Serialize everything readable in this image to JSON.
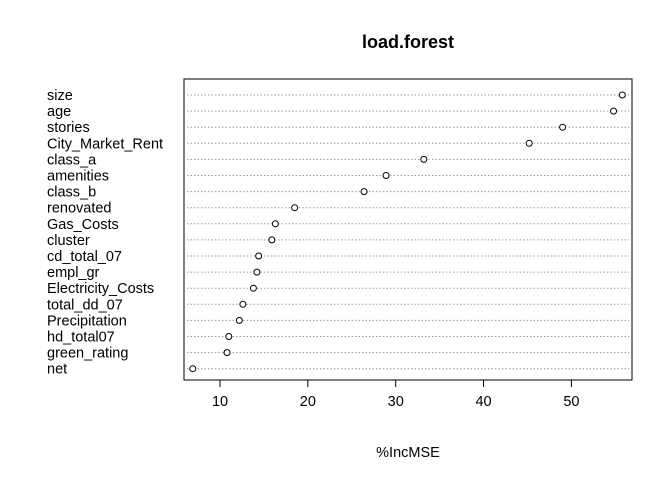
{
  "chart_data": {
    "type": "scatter",
    "title": "load.forest",
    "xlabel": "%IncMSE",
    "ylabel": "",
    "xlim": [
      5.9,
      56.9
    ],
    "xticks": [
      10,
      20,
      30,
      40,
      50
    ],
    "grid": "dotted horizontal lines per variable",
    "categories": [
      "size",
      "age",
      "stories",
      "City_Market_Rent",
      "class_a",
      "amenities",
      "class_b",
      "renovated",
      "Gas_Costs",
      "cluster",
      "cd_total_07",
      "empl_gr",
      "Electricity_Costs",
      "total_dd_07",
      "Precipitation",
      "hd_total07",
      "green_rating",
      "net"
    ],
    "values": [
      55.8,
      54.8,
      49.0,
      45.2,
      33.2,
      28.9,
      26.4,
      18.5,
      16.3,
      15.9,
      14.4,
      14.2,
      13.8,
      12.6,
      12.2,
      11.0,
      10.8,
      6.9
    ]
  }
}
